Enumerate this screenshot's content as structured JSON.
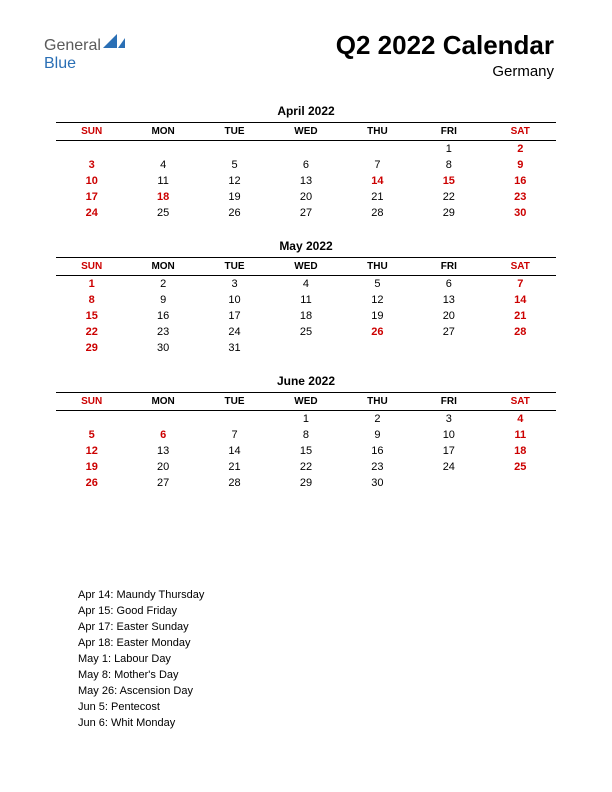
{
  "logo": {
    "text1": "General",
    "text2": "Blue",
    "color1": "#5a5a5a",
    "color2": "#2a6fb5",
    "shape_color": "#2a6fb5"
  },
  "header": {
    "title": "Q2 2022 Calendar",
    "country": "Germany"
  },
  "colors": {
    "red": "#cc0000",
    "black": "#000000",
    "bg": "#ffffff"
  },
  "day_headers": [
    "SUN",
    "MON",
    "TUE",
    "WED",
    "THU",
    "FRI",
    "SAT"
  ],
  "months": [
    {
      "title": "April 2022",
      "weeks": [
        [
          null,
          null,
          null,
          null,
          null,
          {
            "d": 1
          },
          {
            "d": 2,
            "r": 1
          }
        ],
        [
          {
            "d": 3,
            "r": 1
          },
          {
            "d": 4
          },
          {
            "d": 5
          },
          {
            "d": 6
          },
          {
            "d": 7
          },
          {
            "d": 8
          },
          {
            "d": 9,
            "r": 1
          }
        ],
        [
          {
            "d": 10,
            "r": 1
          },
          {
            "d": 11
          },
          {
            "d": 12
          },
          {
            "d": 13
          },
          {
            "d": 14,
            "r": 1
          },
          {
            "d": 15,
            "r": 1
          },
          {
            "d": 16,
            "r": 1
          }
        ],
        [
          {
            "d": 17,
            "r": 1
          },
          {
            "d": 18,
            "r": 1
          },
          {
            "d": 19
          },
          {
            "d": 20
          },
          {
            "d": 21
          },
          {
            "d": 22
          },
          {
            "d": 23,
            "r": 1
          }
        ],
        [
          {
            "d": 24,
            "r": 1
          },
          {
            "d": 25
          },
          {
            "d": 26
          },
          {
            "d": 27
          },
          {
            "d": 28
          },
          {
            "d": 29
          },
          {
            "d": 30,
            "r": 1
          }
        ]
      ]
    },
    {
      "title": "May 2022",
      "weeks": [
        [
          {
            "d": 1,
            "r": 1
          },
          {
            "d": 2
          },
          {
            "d": 3
          },
          {
            "d": 4
          },
          {
            "d": 5
          },
          {
            "d": 6
          },
          {
            "d": 7,
            "r": 1
          }
        ],
        [
          {
            "d": 8,
            "r": 1
          },
          {
            "d": 9
          },
          {
            "d": 10
          },
          {
            "d": 11
          },
          {
            "d": 12
          },
          {
            "d": 13
          },
          {
            "d": 14,
            "r": 1
          }
        ],
        [
          {
            "d": 15,
            "r": 1
          },
          {
            "d": 16
          },
          {
            "d": 17
          },
          {
            "d": 18
          },
          {
            "d": 19
          },
          {
            "d": 20
          },
          {
            "d": 21,
            "r": 1
          }
        ],
        [
          {
            "d": 22,
            "r": 1
          },
          {
            "d": 23
          },
          {
            "d": 24
          },
          {
            "d": 25
          },
          {
            "d": 26,
            "r": 1
          },
          {
            "d": 27
          },
          {
            "d": 28,
            "r": 1
          }
        ],
        [
          {
            "d": 29,
            "r": 1
          },
          {
            "d": 30
          },
          {
            "d": 31
          },
          null,
          null,
          null,
          null
        ]
      ]
    },
    {
      "title": "June 2022",
      "weeks": [
        [
          null,
          null,
          null,
          {
            "d": 1
          },
          {
            "d": 2
          },
          {
            "d": 3
          },
          {
            "d": 4,
            "r": 1
          }
        ],
        [
          {
            "d": 5,
            "r": 1
          },
          {
            "d": 6,
            "r": 1
          },
          {
            "d": 7
          },
          {
            "d": 8
          },
          {
            "d": 9
          },
          {
            "d": 10
          },
          {
            "d": 11,
            "r": 1
          }
        ],
        [
          {
            "d": 12,
            "r": 1
          },
          {
            "d": 13
          },
          {
            "d": 14
          },
          {
            "d": 15
          },
          {
            "d": 16
          },
          {
            "d": 17
          },
          {
            "d": 18,
            "r": 1
          }
        ],
        [
          {
            "d": 19,
            "r": 1
          },
          {
            "d": 20
          },
          {
            "d": 21
          },
          {
            "d": 22
          },
          {
            "d": 23
          },
          {
            "d": 24
          },
          {
            "d": 25,
            "r": 1
          }
        ],
        [
          {
            "d": 26,
            "r": 1
          },
          {
            "d": 27
          },
          {
            "d": 28
          },
          {
            "d": 29
          },
          {
            "d": 30
          },
          null,
          null
        ]
      ]
    }
  ],
  "holidays": [
    "Apr 14: Maundy Thursday",
    "Apr 15: Good Friday",
    "Apr 17: Easter Sunday",
    "Apr 18: Easter Monday",
    "May 1: Labour Day",
    "May 8: Mother's Day",
    "May 26: Ascension Day",
    "Jun 5: Pentecost",
    "Jun 6: Whit Monday"
  ]
}
